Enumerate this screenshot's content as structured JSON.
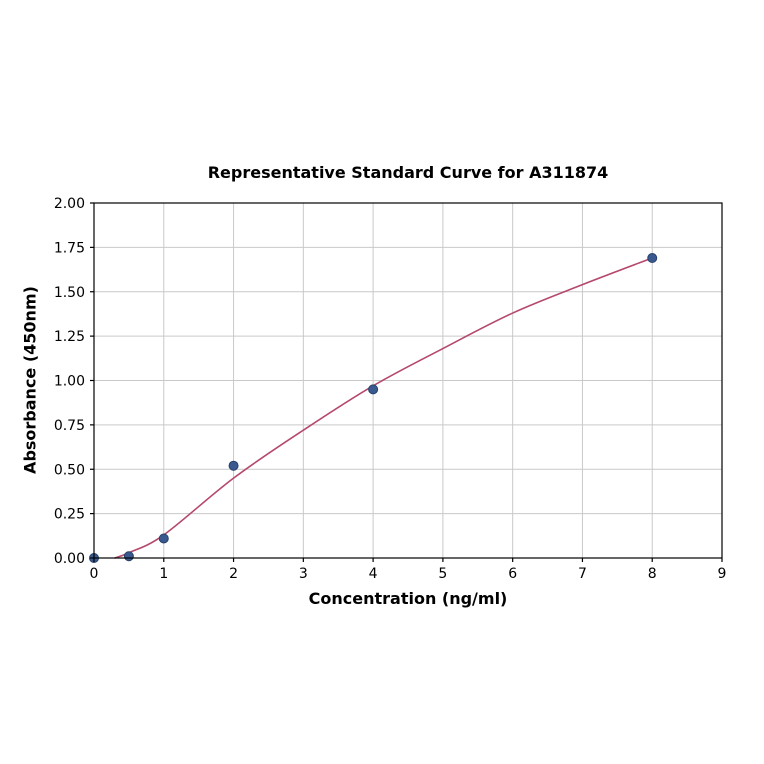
{
  "page": {
    "background": "#ffffff"
  },
  "chart_data": {
    "type": "scatter",
    "title": "Representative Standard Curve for A311874",
    "xlabel": "Concentration (ng/ml)",
    "ylabel": "Absorbance (450nm)",
    "xlim": [
      0,
      9
    ],
    "ylim": [
      0,
      2
    ],
    "x_ticks": [
      0,
      1,
      2,
      3,
      4,
      5,
      6,
      7,
      8,
      9
    ],
    "x_tick_labels": [
      "0",
      "1",
      "2",
      "3",
      "4",
      "5",
      "6",
      "7",
      "8",
      "9"
    ],
    "y_ticks": [
      0.0,
      0.25,
      0.5,
      0.75,
      1.0,
      1.25,
      1.5,
      1.75,
      2.0
    ],
    "y_tick_labels": [
      "0.00",
      "0.25",
      "0.50",
      "0.75",
      "1.00",
      "1.25",
      "1.50",
      "1.75",
      "2.00"
    ],
    "grid": true,
    "legend": "none",
    "series": [
      {
        "name": "fit-curve",
        "kind": "line",
        "x": [
          0.3,
          0.5,
          1,
          2,
          3,
          4,
          5,
          6,
          7,
          8
        ],
        "y": [
          0.0,
          0.03,
          0.13,
          0.45,
          0.72,
          0.97,
          1.18,
          1.38,
          1.54,
          1.69
        ],
        "color": "#b5486b",
        "width": 1.6
      },
      {
        "name": "standard-points",
        "kind": "scatter",
        "x": [
          0,
          0.5,
          1,
          2,
          4,
          8
        ],
        "y": [
          0.0,
          0.01,
          0.11,
          0.52,
          0.95,
          1.69
        ],
        "color": "#3a5a8f",
        "edge": "#27406b",
        "radius": 4.5
      }
    ],
    "colors": {
      "grid": "#c9c9c9",
      "axis": "#000000",
      "tick_text": "#000000"
    }
  }
}
